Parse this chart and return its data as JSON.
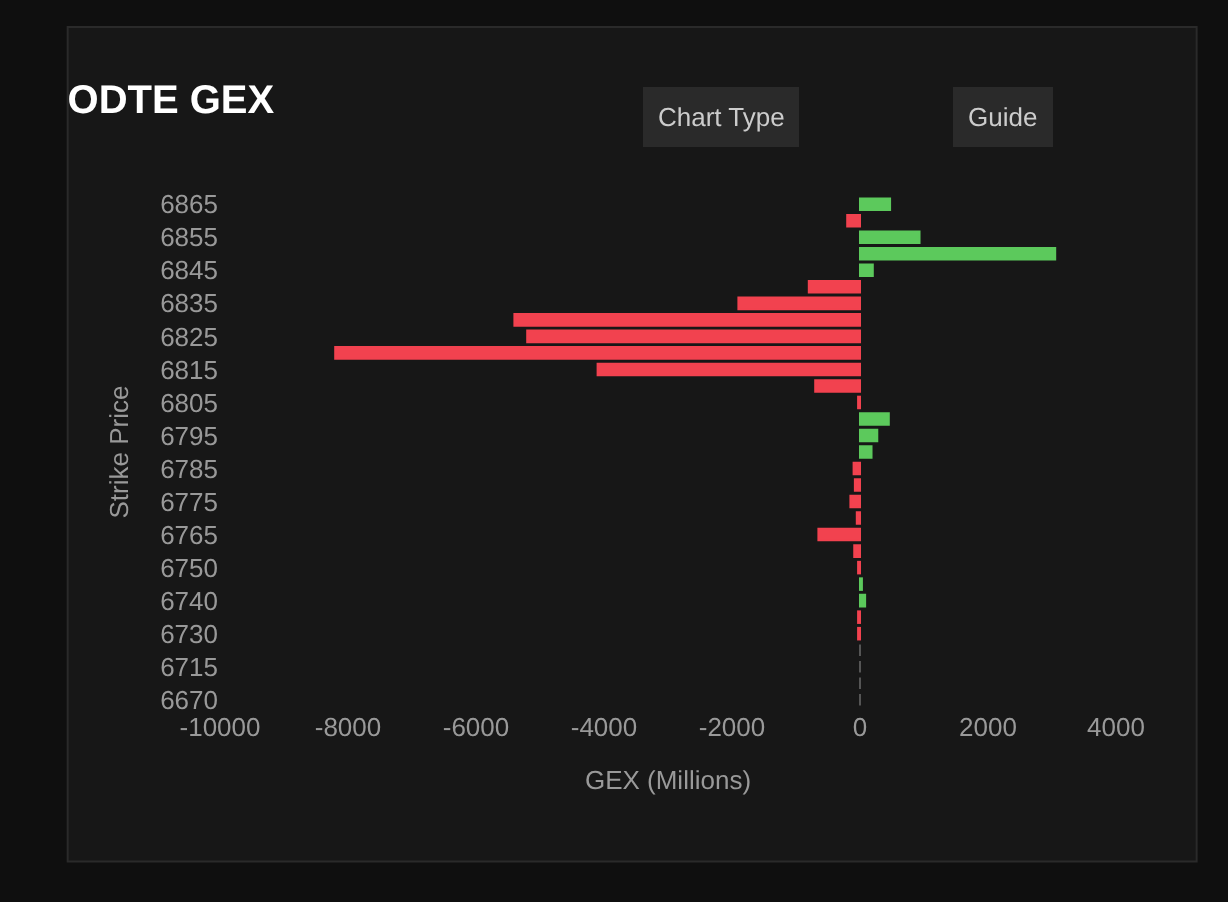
{
  "chart_data": {
    "type": "bar",
    "orientation": "horizontal",
    "title": "ODTE GEX",
    "xlabel": "GEX (Millions)",
    "ylabel": "Strike Price",
    "annotations": [
      "Chart Type",
      "Guide"
    ],
    "categories": [
      "6865",
      null,
      "6855",
      null,
      "6845",
      null,
      "6835",
      null,
      "6825",
      null,
      "6815",
      null,
      "6805",
      null,
      "6795",
      null,
      "6785",
      null,
      "6775",
      null,
      "6765",
      null,
      "6750",
      null,
      "6740",
      null,
      "6730",
      null,
      "6715",
      null,
      "6670"
    ],
    "values": [
      470,
      -200,
      930,
      3050,
      200,
      -800,
      -1900,
      -5400,
      -5200,
      -8200,
      -4100,
      -700,
      -30,
      450,
      270,
      180,
      -100,
      -80,
      -150,
      -50,
      -650,
      -90,
      -30,
      30,
      80,
      -30,
      -30,
      0,
      0,
      0,
      0
    ],
    "colors": [
      "#5cc95c",
      "#f2424f",
      "#5cc95c",
      "#5cc95c",
      "#5cc95c",
      "#f2424f",
      "#f2424f",
      "#f2424f",
      "#f2424f",
      "#f2424f",
      "#f2424f",
      "#f2424f",
      "#f2424f",
      "#5cc95c",
      "#5cc95c",
      "#5cc95c",
      "#f2424f",
      "#f2424f",
      "#f2424f",
      "#f2424f",
      "#f2424f",
      "#f2424f",
      "#f2424f",
      "#5cc95c",
      "#5cc95c",
      "#f2424f",
      "#f2424f",
      "#555555",
      "#555555",
      "#555555",
      "#555555"
    ],
    "xlim": [
      -10000,
      4000
    ],
    "xticks": [
      -10000,
      -8000,
      -6000,
      -4000,
      -2000,
      0,
      2000,
      4000
    ],
    "grid": false
  }
}
